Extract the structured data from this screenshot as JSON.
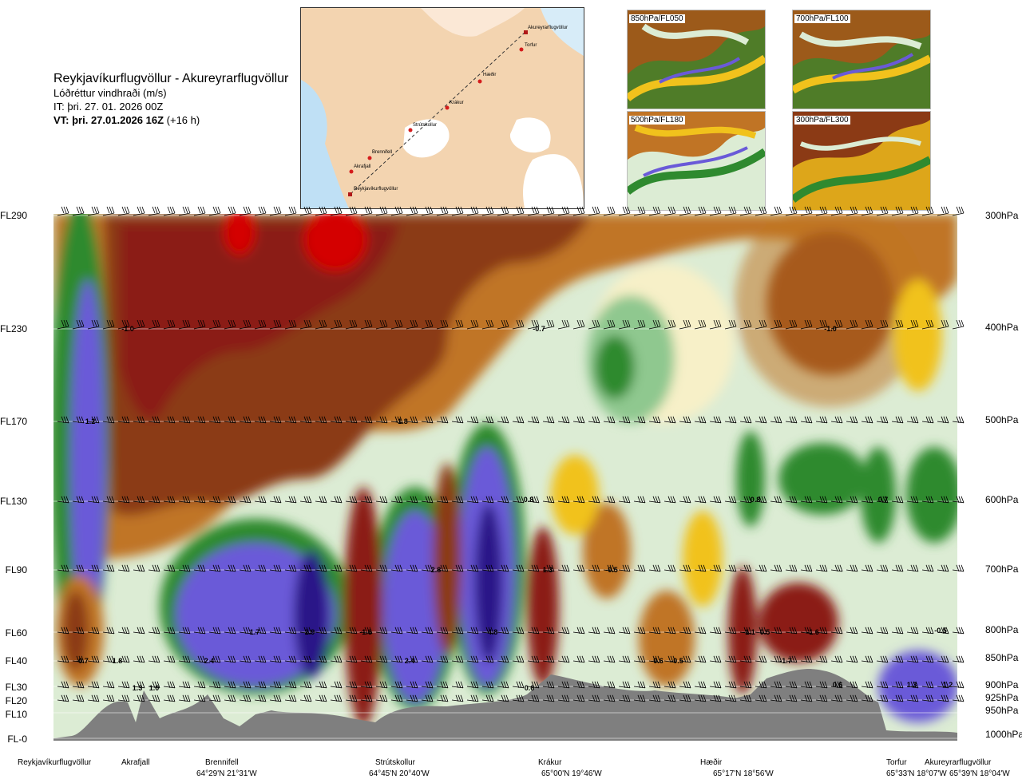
{
  "header": {
    "route": "Reykjavíkurflugvöllur - Akureyrarflugvöllur",
    "variable": "Lóðréttur vindhraði (m/s)",
    "it": "IT: þri. 27. 01. 2026 00Z",
    "vt_bold": "VT: þri. 27.01.2026 16Z",
    "vt_rest": " (+16 h)"
  },
  "route_map": {
    "points": [
      "Akureyrarflugvöllur",
      "Torfur",
      "Hæðir",
      "Krákur",
      "Strútskollur",
      "Brennifell",
      "Akrafjall",
      "Reykjavíkurflugvöllur"
    ]
  },
  "level_maps": [
    {
      "label": "850hPa/FL050"
    },
    {
      "label": "700hPa/FL100"
    },
    {
      "label": "500hPa/FL180"
    },
    {
      "label": "300hPa/FL300"
    }
  ],
  "colors": {
    "strong_down": "#8b1a12",
    "down": "#8b3a15",
    "weak_down": "#c07425",
    "neutral_warm": "#f1c21c",
    "neutral": "#f7f0c8",
    "neutral_cool": "#dcecd4",
    "weak_up": "#2f8a2f",
    "up": "#6a5ad8",
    "strong_up": "#2a1688",
    "terrain": "#7f7f7f"
  },
  "chart_data": {
    "type": "heatmap",
    "title": "Lóðréttur vindhraði (m/s)",
    "flight_levels": [
      "FL290",
      "FL230",
      "FL170",
      "FL130",
      "FL90",
      "FL60",
      "FL40",
      "FL30",
      "FL20",
      "FL10",
      "FL-0"
    ],
    "pressure_levels": [
      "300hPa",
      "400hPa",
      "500hPa",
      "600hPa",
      "700hPa",
      "800hPa",
      "850hPa",
      "900hPa",
      "925hPa",
      "950hPa",
      "1000hPa"
    ],
    "locations": [
      {
        "name": "Reykjavíkurflugvöllur",
        "coord": ""
      },
      {
        "name": "Akrafjall",
        "coord": ""
      },
      {
        "name": "Brennifell",
        "coord": "64°29'N 21°31'W"
      },
      {
        "name": "Strútskollur",
        "coord": "64°45'N 20°40'W"
      },
      {
        "name": "Krákur",
        "coord": "65°00'N 19°46'W"
      },
      {
        "name": "Hæðir",
        "coord": "65°17'N 18°56'W"
      },
      {
        "name": "Torfur",
        "coord": "65°33'N 18°07'W"
      },
      {
        "name": "Akureyrarflugvöllur",
        "coord": "65°39'N 18°04'W"
      }
    ],
    "contour_labels": [
      "-1.0",
      "-0.7",
      "-1.0",
      "1.2",
      "-1.8",
      "0.8",
      "0.8",
      "0.7",
      "2.8",
      "1.3",
      "-0.5",
      "1.7",
      "2.9",
      "-1.6",
      "4.8",
      "-1.1",
      "0.5",
      "-1.6",
      "-0.5",
      "-0.7",
      "1.8",
      "2.4",
      "2.4",
      "-0.6",
      "-0.5",
      "-1.7",
      "1.3",
      "1.0",
      "0.6",
      "0.6",
      "1.3",
      "1.2"
    ]
  }
}
